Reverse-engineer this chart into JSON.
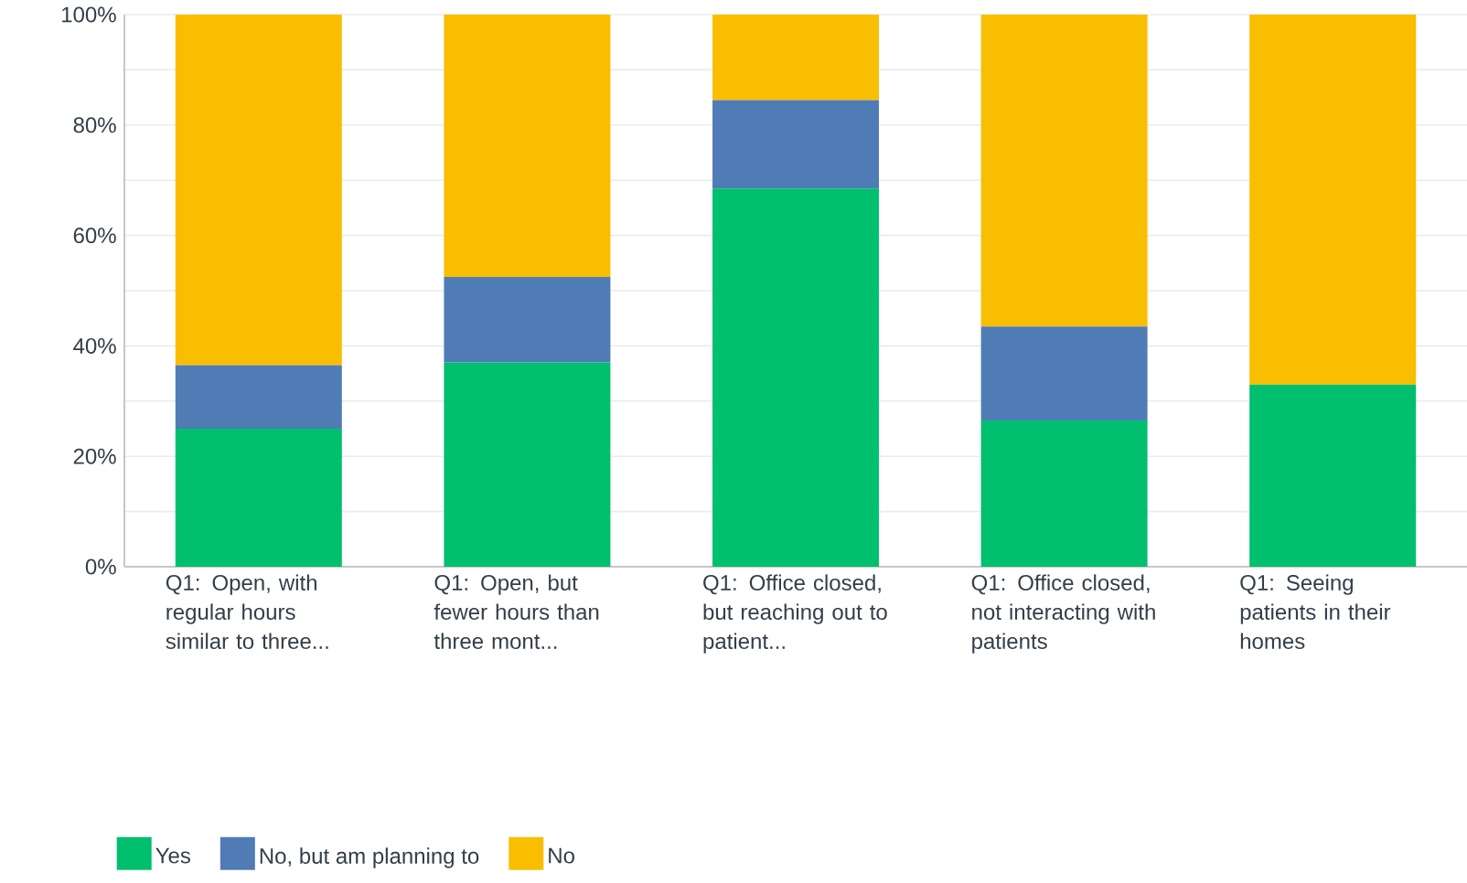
{
  "chart_data": {
    "type": "bar",
    "stacked": true,
    "categories": [
      "Q1: Open, with regular hours similar to three...",
      "Q1: Open, but fewer hours than three mont...",
      "Q1: Office closed, but reaching out to patient...",
      "Q1: Office closed, not interacting with patients",
      "Q1: Seeing patients in their homes"
    ],
    "series": [
      {
        "name": "Yes",
        "color": "#00bf6f",
        "values": [
          25,
          37,
          68.5,
          26.5,
          33
        ]
      },
      {
        "name": "No, but am planning to",
        "color": "#507cb6",
        "values": [
          11.5,
          15.5,
          16,
          17,
          0
        ]
      },
      {
        "name": "No",
        "color": "#f9be00",
        "values": [
          63.5,
          47.5,
          15.5,
          56.5,
          67
        ]
      }
    ],
    "ylim": [
      0,
      100
    ],
    "yticks": [
      {
        "value": 0,
        "label": "0%"
      },
      {
        "value": 10,
        "label": null
      },
      {
        "value": 20,
        "label": "20%"
      },
      {
        "value": 30,
        "label": null
      },
      {
        "value": 40,
        "label": "40%"
      },
      {
        "value": 50,
        "label": null
      },
      {
        "value": 60,
        "label": "60%"
      },
      {
        "value": 70,
        "label": null
      },
      {
        "value": 80,
        "label": "80%"
      },
      {
        "value": 90,
        "label": null
      },
      {
        "value": 100,
        "label": "100%"
      }
    ],
    "grid": "y",
    "legend": "bottom"
  }
}
